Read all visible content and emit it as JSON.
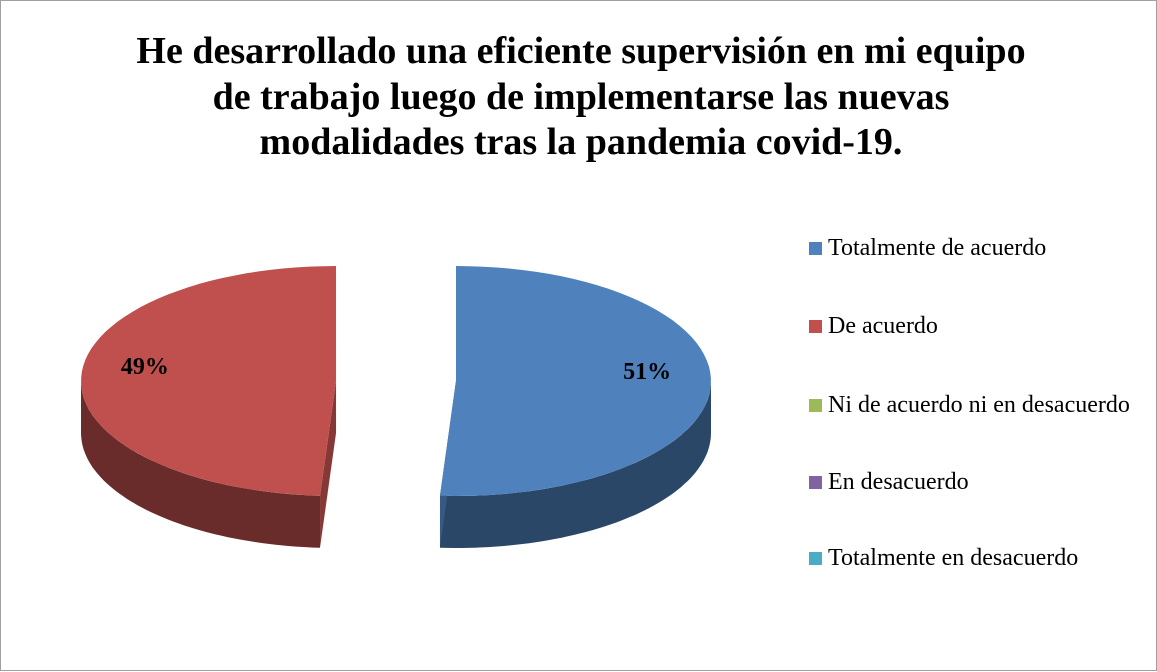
{
  "chart_data": {
    "type": "pie",
    "title": "He desarrollado una eficiente supervisión en mi equipo de trabajo luego de implementarse las nuevas modalidades tras la pandemia covid-19.",
    "categories": [
      "Totalmente de acuerdo",
      "De acuerdo",
      "Ni de acuerdo  ni en desacuerdo",
      "En desacuerdo",
      "Totalmente en desacuerdo"
    ],
    "values": [
      51,
      49,
      0,
      0,
      0
    ],
    "value_labels": [
      "51%",
      "49%",
      null,
      null,
      null
    ],
    "colors": [
      "#4f81bd",
      "#c0504d",
      "#9bbb59",
      "#8064a2",
      "#4bacc6"
    ],
    "legend": "right"
  }
}
